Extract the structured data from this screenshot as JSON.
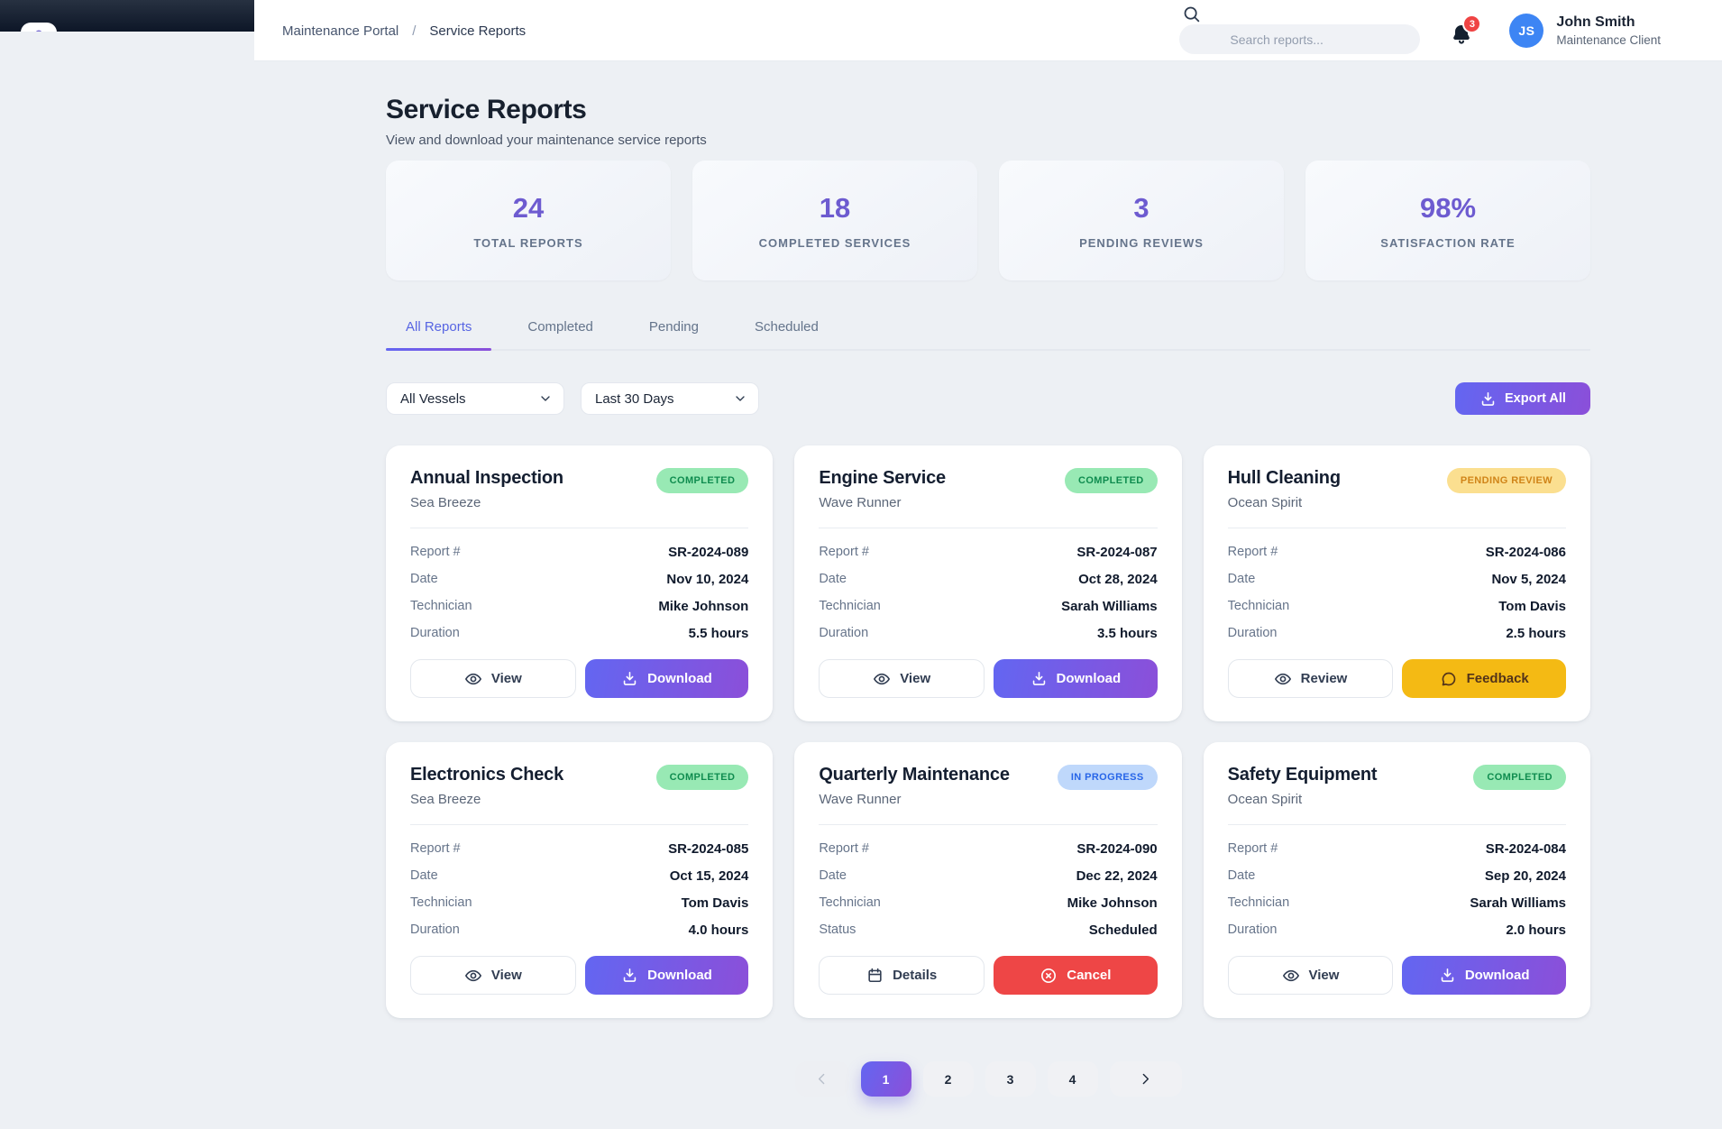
{
  "header": {
    "breadcrumb": {
      "items": [
        "Maintenance Portal",
        "Service Reports"
      ],
      "separator": "/"
    },
    "search": {
      "placeholder": "Search reports..."
    },
    "notifications": {
      "count": "3",
      "bell_icon": "bell-icon"
    },
    "user": {
      "initials": "JS",
      "name": "John Smith",
      "role": "Maintenance Client"
    },
    "logo_icon": "anchor-icon"
  },
  "page": {
    "title": "Service Reports",
    "subtitle": "View and download your maintenance service reports"
  },
  "stats": [
    {
      "value": "24",
      "label": "TOTAL REPORTS"
    },
    {
      "value": "18",
      "label": "COMPLETED SERVICES"
    },
    {
      "value": "3",
      "label": "PENDING REVIEWS"
    },
    {
      "value": "98%",
      "label": "SATISFACTION RATE"
    }
  ],
  "tabs": [
    {
      "label": "All Reports",
      "active": true
    },
    {
      "label": "Completed",
      "active": false
    },
    {
      "label": "Pending",
      "active": false
    },
    {
      "label": "Scheduled",
      "active": false
    }
  ],
  "filters": {
    "vessel": "All Vessels",
    "period": "Last 30 Days",
    "export_label": "Export All",
    "export_icon": "download-icon"
  },
  "reports": [
    {
      "title": "Annual Inspection",
      "vessel": "Sea Breeze",
      "status": {
        "label": "COMPLETED",
        "type": "completed"
      },
      "rows": [
        {
          "label": "Report #",
          "value": "SR-2024-089"
        },
        {
          "label": "Date",
          "value": "Nov 10, 2024"
        },
        {
          "label": "Technician",
          "value": "Mike Johnson"
        },
        {
          "label": "Duration",
          "value": "5.5 hours"
        }
      ],
      "actions": [
        {
          "label": "View",
          "icon": "eye-icon",
          "style": "outline"
        },
        {
          "label": "Download",
          "icon": "download-icon",
          "style": "gradient"
        }
      ]
    },
    {
      "title": "Engine Service",
      "vessel": "Wave Runner",
      "status": {
        "label": "COMPLETED",
        "type": "completed"
      },
      "rows": [
        {
          "label": "Report #",
          "value": "SR-2024-087"
        },
        {
          "label": "Date",
          "value": "Oct 28, 2024"
        },
        {
          "label": "Technician",
          "value": "Sarah Williams"
        },
        {
          "label": "Duration",
          "value": "3.5 hours"
        }
      ],
      "actions": [
        {
          "label": "View",
          "icon": "eye-icon",
          "style": "outline"
        },
        {
          "label": "Download",
          "icon": "download-icon",
          "style": "gradient"
        }
      ]
    },
    {
      "title": "Hull Cleaning",
      "vessel": "Ocean Spirit",
      "status": {
        "label": "PENDING REVIEW",
        "type": "pending"
      },
      "rows": [
        {
          "label": "Report #",
          "value": "SR-2024-086"
        },
        {
          "label": "Date",
          "value": "Nov 5, 2024"
        },
        {
          "label": "Technician",
          "value": "Tom Davis"
        },
        {
          "label": "Duration",
          "value": "2.5 hours"
        }
      ],
      "actions": [
        {
          "label": "Review",
          "icon": "eye-icon",
          "style": "outline"
        },
        {
          "label": "Feedback",
          "icon": "chat-icon",
          "style": "yellow"
        }
      ]
    },
    {
      "title": "Electronics Check",
      "vessel": "Sea Breeze",
      "status": {
        "label": "COMPLETED",
        "type": "completed"
      },
      "rows": [
        {
          "label": "Report #",
          "value": "SR-2024-085"
        },
        {
          "label": "Date",
          "value": "Oct 15, 2024"
        },
        {
          "label": "Technician",
          "value": "Tom Davis"
        },
        {
          "label": "Duration",
          "value": "4.0 hours"
        }
      ],
      "actions": [
        {
          "label": "View",
          "icon": "eye-icon",
          "style": "outline"
        },
        {
          "label": "Download",
          "icon": "download-icon",
          "style": "gradient"
        }
      ]
    },
    {
      "title": "Quarterly Maintenance",
      "vessel": "Wave Runner",
      "status": {
        "label": "IN PROGRESS",
        "type": "progress"
      },
      "rows": [
        {
          "label": "Report #",
          "value": "SR-2024-090"
        },
        {
          "label": "Date",
          "value": "Dec 22, 2024"
        },
        {
          "label": "Technician",
          "value": "Mike Johnson"
        },
        {
          "label": "Status",
          "value": "Scheduled"
        }
      ],
      "actions": [
        {
          "label": "Details",
          "icon": "calendar-icon",
          "style": "outline"
        },
        {
          "label": "Cancel",
          "icon": "x-circle-icon",
          "style": "red"
        }
      ]
    },
    {
      "title": "Safety Equipment",
      "vessel": "Ocean Spirit",
      "status": {
        "label": "COMPLETED",
        "type": "completed"
      },
      "rows": [
        {
          "label": "Report #",
          "value": "SR-2024-084"
        },
        {
          "label": "Date",
          "value": "Sep 20, 2024"
        },
        {
          "label": "Technician",
          "value": "Sarah Williams"
        },
        {
          "label": "Duration",
          "value": "2.0 hours"
        }
      ],
      "actions": [
        {
          "label": "View",
          "icon": "eye-icon",
          "style": "outline"
        },
        {
          "label": "Download",
          "icon": "download-icon",
          "style": "gradient"
        }
      ]
    }
  ],
  "pagination": {
    "pages": [
      "1",
      "2",
      "3",
      "4"
    ],
    "active": "1",
    "prev_icon": "chevron-left-icon",
    "next_icon": "chevron-right-icon"
  },
  "colors": {
    "accent_gradient_start": "#6366f1",
    "accent_gradient_end": "#8b4fd9",
    "stat_number": "#6d5bd0",
    "active_tab": "#5765e3",
    "badge_completed_bg": "#98e9b4",
    "badge_completed_text": "#0f8c4f",
    "badge_pending_bg": "#fbdf90",
    "badge_pending_text": "#d08418",
    "badge_progress_bg": "#bfd8fb",
    "badge_progress_text": "#2765e8",
    "feedback_bg": "#f4ba14",
    "feedback_text": "#53341a",
    "cancel_bg": "#ee4646",
    "avatar_bg": "#3d85f4",
    "notification_bg": "#ef4444"
  }
}
